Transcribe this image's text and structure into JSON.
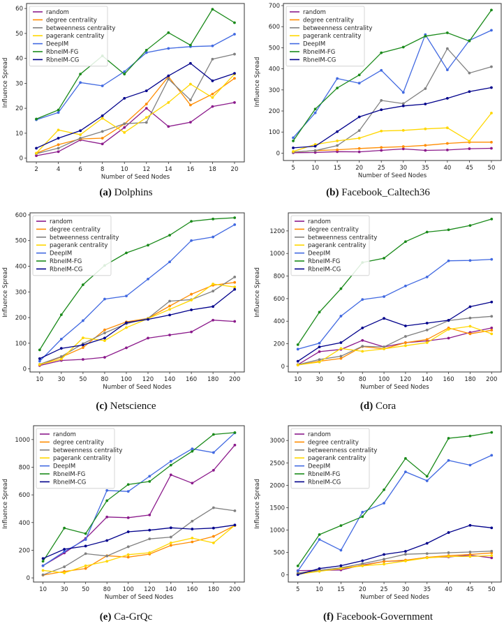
{
  "figure": {
    "series_names": [
      "random",
      "degree centrality",
      "betweenness centrality",
      "pagerank centrality",
      "DeepIM",
      "RbneIM-FG",
      "RbneIM-CG"
    ],
    "series_colors": [
      "#8b1a8b",
      "#ff8c00",
      "#808080",
      "#ffd700",
      "#4169e1",
      "#1a8a1a",
      "#00008b"
    ]
  },
  "chart_data": [
    {
      "type": "line",
      "caption_letter": "(a)",
      "caption_title": "Dolphins",
      "xlabel": "Number of Seed Nodes",
      "ylabel": "Influence Spread",
      "x": [
        2,
        4,
        6,
        8,
        10,
        12,
        14,
        16,
        18,
        20
      ],
      "x_ticks": [
        "2",
        "4",
        "6",
        "8",
        "10",
        "12",
        "14",
        "16",
        "18",
        "20"
      ],
      "ylim": [
        -1.5,
        62
      ],
      "y_ticks": [
        0,
        10,
        20,
        30,
        40,
        50,
        60
      ],
      "legend": "top-left",
      "grid": false,
      "series": [
        {
          "name": "random",
          "values": [
            1,
            2.6,
            7.3,
            5.7,
            12.3,
            20,
            12.7,
            14.4,
            20.7,
            22.3
          ]
        },
        {
          "name": "degree centrality",
          "values": [
            2,
            5.4,
            7.7,
            8,
            13.7,
            21.7,
            32.7,
            21.3,
            25.7,
            32
          ]
        },
        {
          "name": "betweenness centrality",
          "values": [
            1.8,
            4,
            8,
            10.7,
            13.8,
            14.3,
            31.7,
            23.3,
            39.7,
            41.7
          ]
        },
        {
          "name": "pagerank centrality",
          "values": [
            2,
            11.3,
            9.4,
            16,
            10.3,
            16.3,
            22.3,
            29.7,
            24.3,
            33.7
          ]
        },
        {
          "name": "DeepIM",
          "values": [
            15.4,
            18.3,
            30.3,
            29,
            34.7,
            42.3,
            44,
            44.7,
            45,
            49.7
          ]
        },
        {
          "name": "RbneIM-FG",
          "values": [
            15.7,
            19.3,
            33.7,
            41,
            33.7,
            43.3,
            50.3,
            45.3,
            59.7,
            54.3
          ]
        },
        {
          "name": "RbneIM-CG",
          "values": [
            4,
            8,
            11,
            17,
            24,
            27,
            33,
            38,
            31,
            34
          ]
        }
      ]
    },
    {
      "type": "line",
      "caption_letter": "(b)",
      "caption_title": "Facebook_Caltech36",
      "xlabel": "Number of Seed Nodes",
      "ylabel": "Influence Spread",
      "x": [
        5,
        10,
        15,
        20,
        25,
        30,
        35,
        40,
        45,
        50
      ],
      "x_ticks": [
        "5",
        "10",
        "15",
        "20",
        "25",
        "30",
        "35",
        "40",
        "45",
        "50"
      ],
      "ylim": [
        -35,
        710
      ],
      "y_ticks": [
        0,
        100,
        200,
        300,
        400,
        500,
        600,
        700
      ],
      "legend": "top-left",
      "grid": false,
      "series": [
        {
          "name": "random",
          "values": [
            2,
            3,
            7,
            6,
            13,
            20,
            13,
            15,
            21,
            23
          ]
        },
        {
          "name": "degree centrality",
          "values": [
            5,
            12,
            16,
            22,
            27,
            31,
            37,
            46,
            52,
            52
          ]
        },
        {
          "name": "betweenness centrality",
          "values": [
            5,
            12,
            36,
            107,
            250,
            235,
            306,
            496,
            380,
            410
          ]
        },
        {
          "name": "pagerank centrality",
          "values": [
            8,
            41,
            58,
            71,
            105,
            108,
            115,
            120,
            57,
            190
          ]
        },
        {
          "name": "DeepIM",
          "values": [
            73,
            191,
            354,
            332,
            393,
            288,
            562,
            395,
            535,
            583
          ]
        },
        {
          "name": "RbneIM-FG",
          "values": [
            58,
            209,
            309,
            371,
            476,
            503,
            555,
            571,
            532,
            679
          ]
        },
        {
          "name": "RbneIM-CG",
          "values": [
            25,
            33,
            102,
            172,
            206,
            224,
            233,
            260,
            292,
            311
          ]
        }
      ]
    },
    {
      "type": "line",
      "caption_letter": "(c)",
      "caption_title": "Netscience",
      "xlabel": "Number of Seed Nodes",
      "ylabel": "Influence Spread",
      "x": [
        10,
        30,
        50,
        80,
        100,
        120,
        140,
        160,
        180,
        200
      ],
      "x_ticks": [
        "10",
        "30",
        "50",
        "80",
        "100",
        "120",
        "140",
        "160",
        "180",
        "200"
      ],
      "ylim": [
        -12,
        608
      ],
      "y_ticks": [
        0,
        100,
        200,
        300,
        400,
        500,
        600
      ],
      "legend": "top-left",
      "grid": false,
      "series": [
        {
          "name": "random",
          "values": [
            13,
            33,
            37,
            45,
            82,
            120,
            132,
            144,
            190,
            185
          ]
        },
        {
          "name": "degree centrality",
          "values": [
            16,
            46,
            83,
            152,
            183,
            197,
            245,
            291,
            326,
            337
          ]
        },
        {
          "name": "betweenness centrality",
          "values": [
            18,
            48,
            98,
            140,
            176,
            197,
            264,
            270,
            303,
            358
          ]
        },
        {
          "name": "pagerank centrality",
          "values": [
            17,
            38,
            121,
            110,
            161,
            196,
            232,
            268,
            331,
            319
          ]
        },
        {
          "name": "DeepIM",
          "values": [
            30,
            116,
            188,
            272,
            284,
            350,
            417,
            500,
            514,
            562
          ]
        },
        {
          "name": "RbneIM-FG",
          "values": [
            74,
            211,
            328,
            403,
            452,
            482,
            521,
            575,
            584,
            589
          ]
        },
        {
          "name": "RbneIM-CG",
          "values": [
            40,
            80,
            93,
            120,
            180,
            193,
            210,
            230,
            243,
            310
          ]
        }
      ]
    },
    {
      "type": "line",
      "caption_letter": "(d)",
      "caption_title": "Cora",
      "xlabel": "Number of Seed Nodes",
      "ylabel": "Influence Spread",
      "x": [
        10,
        30,
        50,
        80,
        100,
        120,
        140,
        160,
        180,
        200
      ],
      "x_ticks": [
        "10",
        "30",
        "50",
        "80",
        "100",
        "120",
        "140",
        "160",
        "180",
        "200"
      ],
      "ylim": [
        -50,
        1360
      ],
      "y_ticks": [
        0,
        200,
        400,
        600,
        800,
        1000,
        1200
      ],
      "legend": "top-left",
      "grid": false,
      "series": [
        {
          "name": "random",
          "values": [
            15,
            130,
            150,
            230,
            172,
            210,
            225,
            250,
            300,
            340
          ]
        },
        {
          "name": "degree centrality",
          "values": [
            12,
            45,
            70,
            175,
            155,
            210,
            238,
            340,
            288,
            320
          ]
        },
        {
          "name": "betweenness centrality",
          "values": [
            15,
            60,
            90,
            178,
            172,
            265,
            322,
            405,
            428,
            443
          ]
        },
        {
          "name": "pagerank centrality",
          "values": [
            12,
            38,
            158,
            133,
            155,
            183,
            210,
            328,
            355,
            288
          ]
        },
        {
          "name": "DeepIM",
          "values": [
            152,
            205,
            445,
            592,
            618,
            712,
            792,
            935,
            938,
            948
          ]
        },
        {
          "name": "RbneIM-FG",
          "values": [
            192,
            480,
            688,
            920,
            958,
            1105,
            1190,
            1210,
            1248,
            1305
          ]
        },
        {
          "name": "RbneIM-CG",
          "values": [
            45,
            172,
            210,
            340,
            425,
            358,
            383,
            408,
            528,
            570
          ]
        }
      ]
    },
    {
      "type": "line",
      "caption_letter": "(e)",
      "caption_title": "Ca-GrQc",
      "xlabel": "Number of Seed Nodes",
      "ylabel": "Influence Spread",
      "x": [
        10,
        30,
        50,
        80,
        100,
        120,
        140,
        160,
        180,
        200
      ],
      "x_ticks": [
        "10",
        "30",
        "50",
        "80",
        "100",
        "120",
        "140",
        "160",
        "180",
        "200"
      ],
      "ylim": [
        -30,
        1100
      ],
      "y_ticks": [
        0,
        200,
        400,
        600,
        800,
        1000
      ],
      "legend": "top-left",
      "grid": false,
      "series": [
        {
          "name": "random",
          "values": [
            88,
            180,
            285,
            440,
            435,
            455,
            745,
            685,
            778,
            960
          ]
        },
        {
          "name": "degree centrality",
          "values": [
            20,
            46,
            68,
            160,
            150,
            172,
            235,
            260,
            300,
            378
          ]
        },
        {
          "name": "betweenness centrality",
          "values": [
            22,
            80,
            175,
            158,
            225,
            282,
            295,
            410,
            507,
            485
          ]
        },
        {
          "name": "pagerank centrality",
          "values": [
            54,
            36,
            87,
            120,
            168,
            182,
            253,
            288,
            253,
            380
          ]
        },
        {
          "name": "DeepIM",
          "values": [
            88,
            190,
            277,
            632,
            625,
            735,
            843,
            933,
            906,
            1048
          ]
        },
        {
          "name": "RbneIM-FG",
          "values": [
            120,
            360,
            320,
            558,
            675,
            697,
            815,
            915,
            1037,
            1050
          ]
        },
        {
          "name": "RbneIM-CG",
          "values": [
            140,
            207,
            230,
            270,
            333,
            345,
            362,
            353,
            360,
            382
          ]
        }
      ]
    },
    {
      "type": "line",
      "caption_letter": "(f)",
      "caption_title": "Facebook-Government",
      "xlabel": "Number of Seed Nodes",
      "ylabel": "Influence Spread",
      "x": [
        5,
        10,
        15,
        20,
        25,
        30,
        35,
        40,
        45,
        50
      ],
      "x_ticks": [
        "5",
        "10",
        "15",
        "20",
        "25",
        "30",
        "35",
        "40",
        "45",
        "50"
      ],
      "ylim": [
        -160,
        3330
      ],
      "y_ticks": [
        0,
        500,
        1000,
        1500,
        2000,
        2500,
        3000
      ],
      "legend": "top-left",
      "grid": false,
      "series": [
        {
          "name": "random",
          "values": [
            95,
            100,
            110,
            220,
            300,
            320,
            390,
            400,
            440,
            380
          ]
        },
        {
          "name": "degree centrality",
          "values": [
            20,
            100,
            150,
            210,
            300,
            330,
            390,
            430,
            455,
            490
          ]
        },
        {
          "name": "betweenness centrality",
          "values": [
            40,
            100,
            160,
            250,
            350,
            460,
            475,
            495,
            510,
            530
          ]
        },
        {
          "name": "pagerank centrality",
          "values": [
            15,
            80,
            140,
            200,
            240,
            310,
            380,
            410,
            410,
            430
          ]
        },
        {
          "name": "DeepIM",
          "values": [
            85,
            790,
            550,
            1400,
            1600,
            2300,
            2100,
            2555,
            2450,
            2670
          ]
        },
        {
          "name": "RbneIM-FG",
          "values": [
            200,
            900,
            1100,
            1300,
            1900,
            2600,
            2200,
            3050,
            3100,
            3180
          ]
        },
        {
          "name": "RbneIM-CG",
          "values": [
            5,
            140,
            205,
            315,
            455,
            525,
            705,
            945,
            1105,
            1050
          ]
        }
      ]
    }
  ]
}
